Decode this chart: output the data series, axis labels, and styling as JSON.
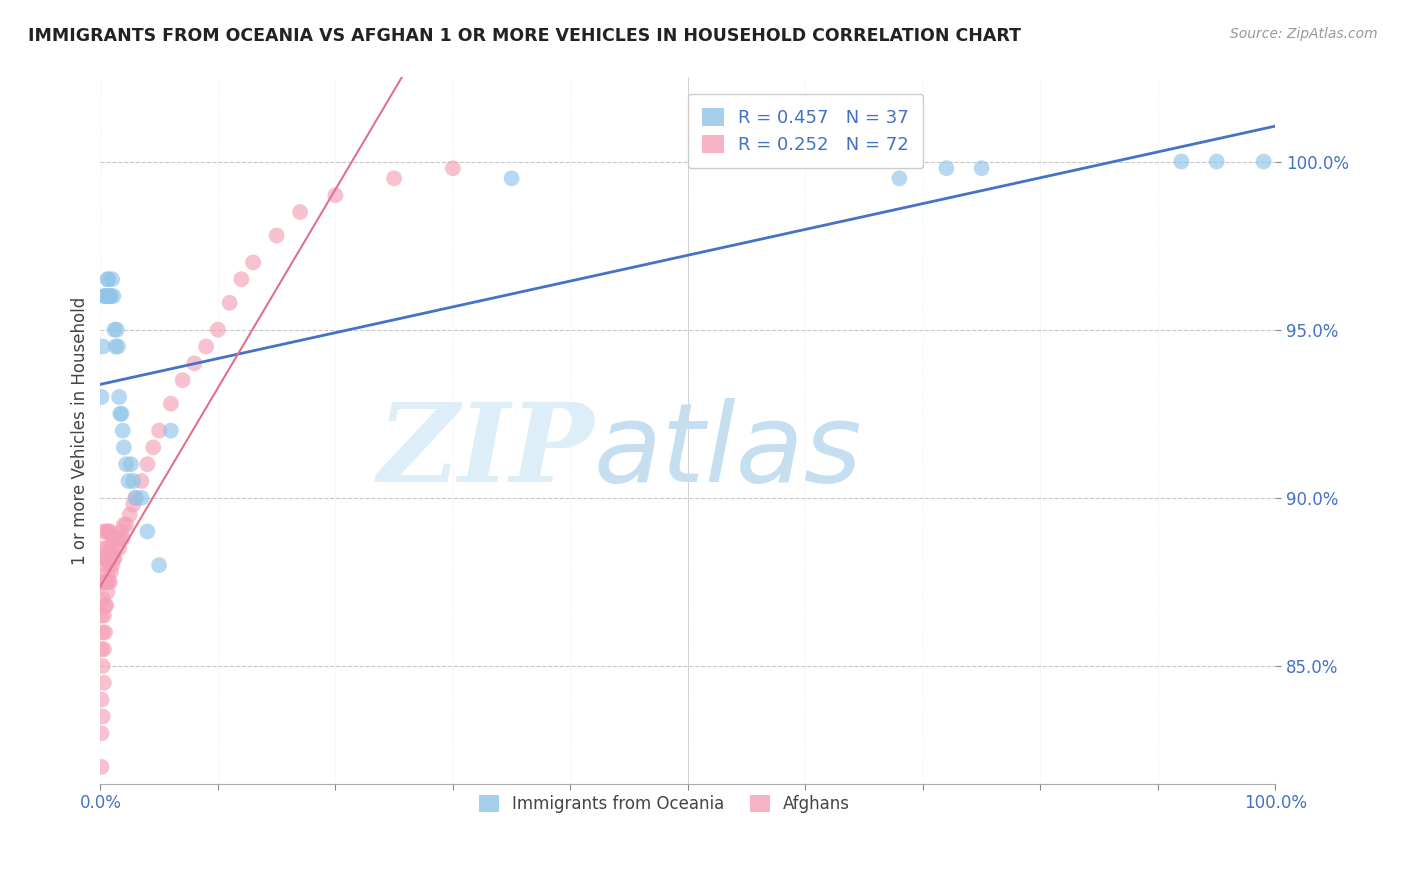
{
  "title": "IMMIGRANTS FROM OCEANIA VS AFGHAN 1 OR MORE VEHICLES IN HOUSEHOLD CORRELATION CHART",
  "source": "Source: ZipAtlas.com",
  "ylabel": "1 or more Vehicles in Household",
  "oceania_color": "#90c4e8",
  "afghan_color": "#f4a0b8",
  "trendline_oceania_color": "#4472c4",
  "trendline_afghan_color": "#e07090",
  "background_color": "#ffffff",
  "grid_color": "#c8c8c8",
  "xlim": [
    0.0,
    1.0
  ],
  "ylim": [
    0.815,
    1.025
  ],
  "ytick_vals": [
    0.85,
    0.9,
    0.95,
    1.0
  ],
  "ytick_labels": [
    "85.0%",
    "90.0%",
    "95.0%",
    "100.0%"
  ],
  "xtick_vals": [
    0.0,
    0.1,
    0.2,
    0.3,
    0.4,
    0.5,
    0.6,
    0.7,
    0.8,
    0.9,
    1.0
  ],
  "xtick_labels": [
    "0.0%",
    "",
    "",
    "",
    "",
    "",
    "",
    "",
    "",
    "",
    "100.0%"
  ],
  "oceania_x": [
    0.001,
    0.002,
    0.003,
    0.004,
    0.005,
    0.006,
    0.007,
    0.007,
    0.008,
    0.009,
    0.01,
    0.011,
    0.012,
    0.013,
    0.014,
    0.015,
    0.016,
    0.017,
    0.018,
    0.019,
    0.02,
    0.022,
    0.024,
    0.026,
    0.028,
    0.03,
    0.035,
    0.04,
    0.05,
    0.06,
    0.35,
    0.68,
    0.72,
    0.75,
    0.92,
    0.95,
    0.99
  ],
  "oceania_y": [
    0.93,
    0.945,
    0.96,
    0.96,
    0.96,
    0.965,
    0.96,
    0.965,
    0.96,
    0.96,
    0.965,
    0.96,
    0.95,
    0.945,
    0.95,
    0.945,
    0.93,
    0.925,
    0.925,
    0.92,
    0.915,
    0.91,
    0.905,
    0.91,
    0.905,
    0.9,
    0.9,
    0.89,
    0.88,
    0.92,
    0.995,
    0.995,
    0.998,
    0.998,
    1.0,
    1.0,
    1.0
  ],
  "afghan_x": [
    0.001,
    0.001,
    0.001,
    0.001,
    0.001,
    0.001,
    0.001,
    0.002,
    0.002,
    0.002,
    0.002,
    0.002,
    0.003,
    0.003,
    0.003,
    0.003,
    0.003,
    0.003,
    0.004,
    0.004,
    0.004,
    0.004,
    0.005,
    0.005,
    0.005,
    0.005,
    0.006,
    0.006,
    0.006,
    0.007,
    0.007,
    0.007,
    0.008,
    0.008,
    0.008,
    0.009,
    0.009,
    0.01,
    0.01,
    0.011,
    0.011,
    0.012,
    0.012,
    0.013,
    0.014,
    0.015,
    0.016,
    0.017,
    0.018,
    0.019,
    0.02,
    0.022,
    0.025,
    0.028,
    0.03,
    0.035,
    0.04,
    0.045,
    0.05,
    0.06,
    0.07,
    0.08,
    0.09,
    0.1,
    0.11,
    0.12,
    0.13,
    0.15,
    0.17,
    0.2,
    0.25,
    0.3
  ],
  "afghan_y": [
    0.82,
    0.83,
    0.84,
    0.855,
    0.865,
    0.875,
    0.885,
    0.835,
    0.85,
    0.86,
    0.87,
    0.88,
    0.845,
    0.855,
    0.865,
    0.875,
    0.882,
    0.89,
    0.86,
    0.868,
    0.875,
    0.882,
    0.868,
    0.875,
    0.882,
    0.89,
    0.872,
    0.878,
    0.885,
    0.875,
    0.882,
    0.89,
    0.875,
    0.882,
    0.89,
    0.878,
    0.885,
    0.88,
    0.888,
    0.882,
    0.888,
    0.882,
    0.888,
    0.885,
    0.888,
    0.888,
    0.885,
    0.888,
    0.89,
    0.888,
    0.892,
    0.892,
    0.895,
    0.898,
    0.9,
    0.905,
    0.91,
    0.915,
    0.92,
    0.928,
    0.935,
    0.94,
    0.945,
    0.95,
    0.958,
    0.965,
    0.97,
    0.978,
    0.985,
    0.99,
    0.995,
    0.998
  ]
}
